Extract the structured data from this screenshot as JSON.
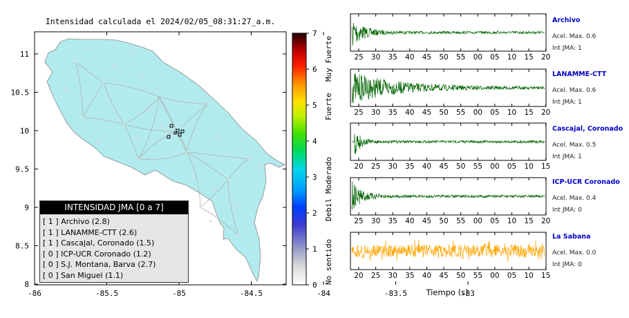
{
  "map": {
    "title": "Intensidad calculada el 2024/02/05_08:31:27_a.m.",
    "xticks": [
      "-86",
      "-85.5",
      "-85",
      "-84.5",
      "-84",
      "-83.5",
      "-83"
    ],
    "yticks": [
      "11",
      "10.5",
      "10",
      "9.5",
      "9",
      "8.5",
      "8"
    ],
    "land_color": "#b2ebee"
  },
  "colorbar": {
    "ticks": [
      "0",
      "1",
      "2",
      "3",
      "4",
      "5",
      "6",
      "7"
    ],
    "labels": [
      "No sentido",
      "Debil",
      "Moderado",
      "Fuerte",
      "Muy Fuerte"
    ]
  },
  "legend": {
    "title": "INTENSIDAD JMA [0 a 7]",
    "items": [
      {
        "label": "[ 1 ]  Archivo (2.8)"
      },
      {
        "label": "[ 1 ]  LANAMME-CTT (2.6)"
      },
      {
        "label": "[ 1 ]  Cascajal, Coronado (1.5)"
      },
      {
        "label": "[ 0 ]  ICP-UCR Coronado (1.2)"
      },
      {
        "label": "[ 0 ]  S.J. Montana, Barva (2.7)"
      },
      {
        "label": "[ 0 ]  San Miguel (1.1)"
      }
    ]
  },
  "waveforms": {
    "xlabel": "Tiempo (s)",
    "stations": [
      {
        "name": "Archivo",
        "acc": "Acel. Max. 0.6",
        "int": "Int JMA: 1",
        "color": "#006400",
        "ticks": [
          "25",
          "30",
          "35",
          "40",
          "45",
          "50",
          "55",
          "00",
          "05",
          "10",
          "15",
          "20"
        ],
        "start": 23,
        "onset": 0.0,
        "decay": 0.03
      },
      {
        "name": "LANAMME-CTT",
        "acc": "Acel. Max. 0.6",
        "int": "Int JMA: 1",
        "color": "#006400",
        "ticks": [
          "25",
          "30",
          "35",
          "40",
          "45",
          "50",
          "55",
          "00",
          "05",
          "10",
          "15",
          "20"
        ],
        "start": 23,
        "onset": 0.0,
        "decay": 0.008
      },
      {
        "name": "Cascajal, Coronado",
        "acc": "Acel. Max. 0.5",
        "int": "Int JMA: 1",
        "color": "#006400",
        "ticks": [
          "20",
          "25",
          "30",
          "35",
          "40",
          "45",
          "50",
          "55",
          "00",
          "05",
          "10",
          "15"
        ],
        "start": 19,
        "onset": 0.015,
        "decay": 0.06
      },
      {
        "name": "ICP-UCR Coronado",
        "acc": "Acel. Max. 0.4",
        "int": "Int JMA: 0",
        "color": "#006400",
        "ticks": [
          "25",
          "30",
          "35",
          "40",
          "45",
          "50",
          "55",
          "00",
          "05",
          "10",
          "15",
          "20"
        ],
        "start": 22,
        "onset": 0.0,
        "decay": 0.035
      },
      {
        "name": "La Sabana",
        "acc": "Acel. Max. 0.0",
        "int": "Int JMA: 0",
        "color": "#ffa500",
        "ticks": [
          "20",
          "25",
          "30",
          "35",
          "40",
          "45",
          "50",
          "55",
          "00",
          "05",
          "10",
          "15"
        ],
        "start": 19,
        "onset": 0.0,
        "decay": 0.0
      }
    ]
  }
}
